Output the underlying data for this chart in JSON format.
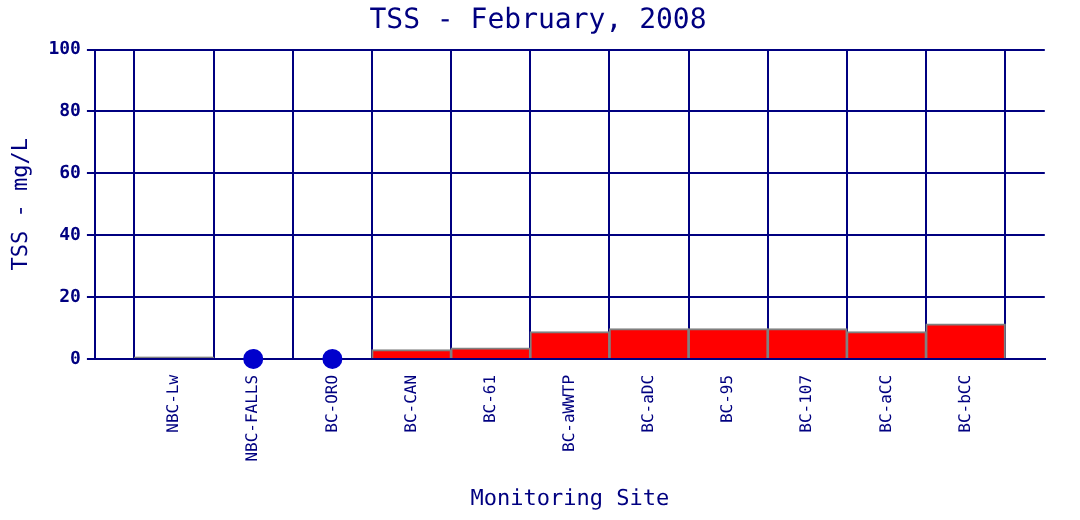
{
  "chart_data": {
    "type": "bar",
    "title": "TSS - February, 2008",
    "xlabel": "Monitoring Site",
    "ylabel": "TSS - mg/L",
    "categories": [
      "NBC-Lw",
      "NBC-FALLS",
      "BC-ORO",
      "BC-CAN",
      "BC-61",
      "BC-aWWTP",
      "BC-aDC",
      "BC-95",
      "BC-107",
      "BC-aCC",
      "BC-bCC"
    ],
    "series": [
      {
        "values": [
          0.6,
          null,
          null,
          2.9,
          3.5,
          8.7,
          9.7,
          9.7,
          9.7,
          8.7,
          11.2
        ],
        "colors": [
          "#808080",
          null,
          null,
          "#ff0000",
          "#ff0000",
          "#ff0000",
          "#ff0000",
          "#ff0000",
          "#ff0000",
          "#ff0000",
          "#ff0000"
        ]
      },
      {
        "type": "scatter",
        "x": [
          "NBC-FALLS",
          "BC-ORO"
        ],
        "values": [
          0,
          0
        ],
        "color": "#0000cc",
        "marker": "circle"
      }
    ],
    "ylim": [
      0,
      100
    ],
    "yticks": [
      0,
      20,
      40,
      60,
      80,
      100
    ],
    "grid": true,
    "legend": false
  }
}
